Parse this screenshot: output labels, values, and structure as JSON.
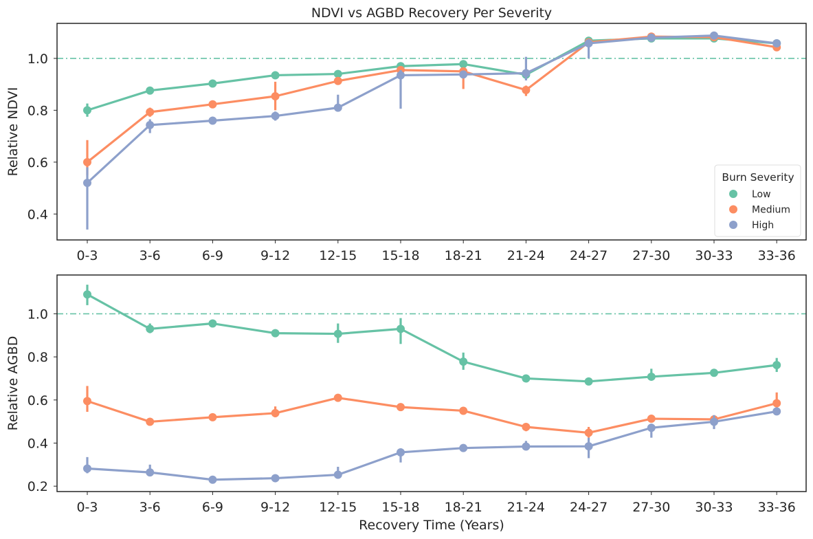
{
  "figure": {
    "title": "NDVI vs AGBD Recovery Per Severity",
    "xlabel": "Recovery Time (Years)"
  },
  "legend": {
    "title": "Burn Severity",
    "placement": "lower-right",
    "entries": [
      "Low",
      "Medium",
      "High"
    ]
  },
  "colors": {
    "Low": "#66c2a5",
    "Medium": "#fc8d62",
    "High": "#8da0cb",
    "reference_line": "#66c2a5"
  },
  "chart_data": [
    {
      "type": "line",
      "title": "NDVI vs AGBD Recovery Per Severity",
      "xlabel": "",
      "ylabel": "Relative NDVI",
      "categories": [
        "0-3",
        "3-6",
        "6-9",
        "9-12",
        "12-15",
        "15-18",
        "18-21",
        "21-24",
        "24-27",
        "27-30",
        "30-33",
        "33-36"
      ],
      "ylim": [
        0.3,
        1.135
      ],
      "yticks": [
        0.4,
        0.6,
        0.8,
        1.0
      ],
      "yticklabels": [
        "0.4",
        "0.6",
        "0.8",
        "1.0"
      ],
      "reference_line": 1.0,
      "grid": false,
      "legend": "lower-right",
      "series": [
        {
          "name": "Low",
          "values": [
            0.8,
            0.876,
            0.903,
            0.935,
            0.94,
            0.97,
            0.978,
            0.937,
            1.068,
            1.077,
            1.077,
            1.058
          ],
          "err_low": [
            0.775,
            0.862,
            0.898,
            0.922,
            0.935,
            0.965,
            0.97,
            0.93,
            1.06,
            1.07,
            1.07,
            1.05
          ],
          "err_high": [
            0.826,
            0.89,
            0.908,
            0.95,
            0.945,
            0.975,
            0.986,
            0.944,
            1.075,
            1.085,
            1.085,
            1.065
          ]
        },
        {
          "name": "Medium",
          "values": [
            0.6,
            0.793,
            0.823,
            0.854,
            0.913,
            0.955,
            0.95,
            0.878,
            1.062,
            1.084,
            1.082,
            1.043
          ],
          "err_low": [
            0.55,
            0.775,
            0.815,
            0.8,
            0.905,
            0.94,
            0.882,
            0.855,
            1.055,
            1.078,
            1.075,
            1.035
          ],
          "err_high": [
            0.685,
            0.81,
            0.83,
            0.91,
            0.92,
            0.968,
            0.96,
            0.895,
            1.07,
            1.09,
            1.09,
            1.05
          ]
        },
        {
          "name": "High",
          "values": [
            0.52,
            0.743,
            0.76,
            0.778,
            0.81,
            0.935,
            0.938,
            0.943,
            1.058,
            1.08,
            1.088,
            1.058
          ],
          "err_low": [
            0.34,
            0.712,
            0.752,
            0.76,
            0.795,
            0.806,
            0.928,
            0.915,
            1.0,
            1.072,
            1.08,
            1.05
          ],
          "err_high": [
            0.58,
            0.765,
            0.768,
            0.795,
            0.86,
            0.955,
            0.948,
            1.006,
            1.075,
            1.09,
            1.096,
            1.066
          ]
        }
      ]
    },
    {
      "type": "line",
      "title": "",
      "xlabel": "Recovery Time (Years)",
      "ylabel": "Relative AGBD",
      "categories": [
        "0-3",
        "3-6",
        "6-9",
        "9-12",
        "12-15",
        "15-18",
        "18-21",
        "21-24",
        "24-27",
        "27-30",
        "30-33",
        "33-36"
      ],
      "ylim": [
        0.175,
        1.18
      ],
      "yticks": [
        0.2,
        0.4,
        0.6,
        0.8,
        1.0
      ],
      "yticklabels": [
        "0.2",
        "0.4",
        "0.6",
        "0.8",
        "1.0"
      ],
      "reference_line": 1.0,
      "grid": false,
      "series": [
        {
          "name": "Low",
          "values": [
            1.09,
            0.93,
            0.955,
            0.91,
            0.907,
            0.93,
            0.778,
            0.7,
            0.686,
            0.708,
            0.726,
            0.762
          ],
          "err_low": [
            1.04,
            0.91,
            0.94,
            0.895,
            0.865,
            0.86,
            0.74,
            0.695,
            0.68,
            0.69,
            0.715,
            0.73
          ],
          "err_high": [
            1.135,
            0.955,
            0.965,
            0.92,
            0.955,
            0.98,
            0.82,
            0.708,
            0.69,
            0.745,
            0.735,
            0.795
          ]
        },
        {
          "name": "Medium",
          "values": [
            0.595,
            0.499,
            0.52,
            0.539,
            0.61,
            0.567,
            0.55,
            0.475,
            0.448,
            0.513,
            0.51,
            0.585
          ],
          "err_low": [
            0.545,
            0.49,
            0.51,
            0.52,
            0.6,
            0.555,
            0.535,
            0.455,
            0.425,
            0.5,
            0.495,
            0.555
          ],
          "err_high": [
            0.665,
            0.51,
            0.53,
            0.57,
            0.62,
            0.58,
            0.565,
            0.49,
            0.475,
            0.525,
            0.525,
            0.635
          ]
        },
        {
          "name": "High",
          "values": [
            0.282,
            0.264,
            0.23,
            0.237,
            0.253,
            0.357,
            0.377,
            0.384,
            0.385,
            0.471,
            0.499,
            0.547
          ],
          "err_low": [
            0.26,
            0.25,
            0.225,
            0.23,
            0.235,
            0.31,
            0.365,
            0.37,
            0.33,
            0.425,
            0.465,
            0.535
          ],
          "err_high": [
            0.335,
            0.3,
            0.238,
            0.245,
            0.29,
            0.375,
            0.39,
            0.41,
            0.425,
            0.49,
            0.53,
            0.56
          ]
        }
      ]
    }
  ]
}
